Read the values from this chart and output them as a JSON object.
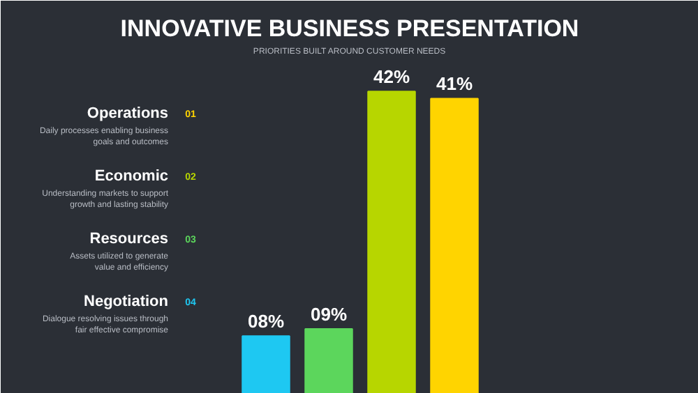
{
  "chart_data": {
    "type": "bar",
    "title": "INNOVATIVE BUSINESS PRESENTATION",
    "subtitle": "PRIORITIES BUILT AROUND CUSTOMER NEEDS",
    "categories": [
      null,
      null,
      null,
      null
    ],
    "values": [
      8,
      9,
      42,
      41
    ],
    "colors": [
      "#1ec8f2",
      "#5cd65c",
      "#b7d600",
      "#ffd400"
    ],
    "value_labels": [
      "08%",
      "09%",
      "42%",
      "41%"
    ],
    "annotations": [
      "Negotiation",
      "04",
      "Dialogue resolving issues through fair effective compromise",
      "Resources",
      "03",
      "Assets utilized to generate value and efficiency",
      "Economic",
      "02",
      "Understanding markets to support growth and lasting stability",
      "Operations",
      "01",
      "Daily processes enabling business goals and outcomes"
    ],
    "grid": false,
    "tick_labels": false
  }
}
